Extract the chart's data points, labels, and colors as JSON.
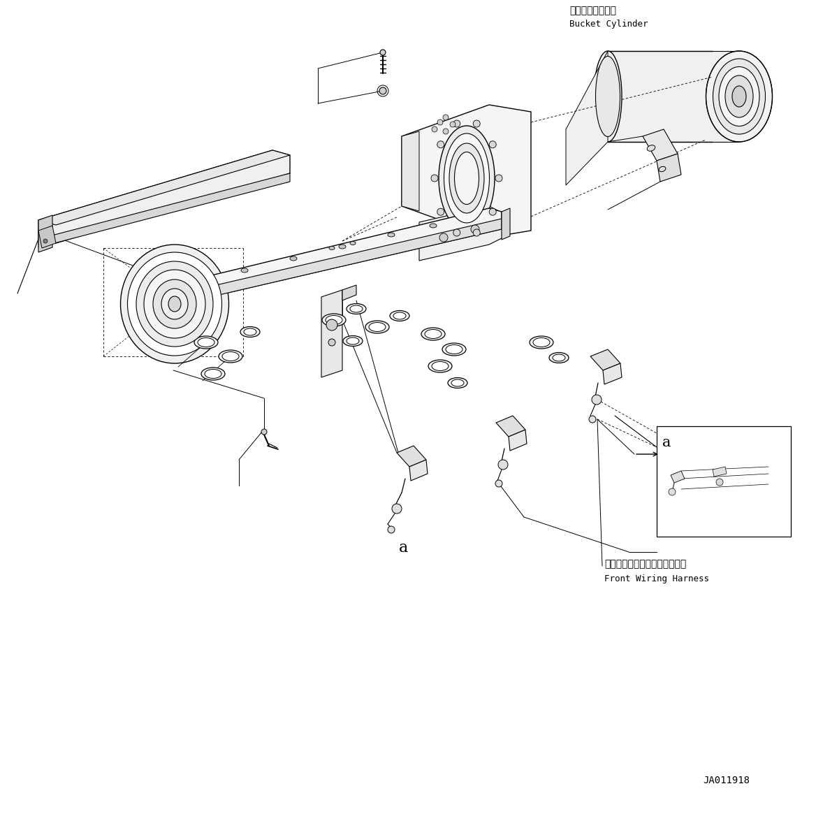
{
  "background_color": "#ffffff",
  "label_bucket_cylinder_jp": "バケットシリンダ",
  "label_bucket_cylinder_en": "Bucket Cylinder",
  "label_front_wiring_jp": "フロントワイヤリングハーネス",
  "label_front_wiring_en": "Front Wiring Harness",
  "label_a1": "a",
  "label_a2": "a",
  "diagram_id": "JA011918",
  "fig_width": 11.68,
  "fig_height": 11.75,
  "line_color": "#000000",
  "lw": 0.8,
  "dlw": 0.6
}
